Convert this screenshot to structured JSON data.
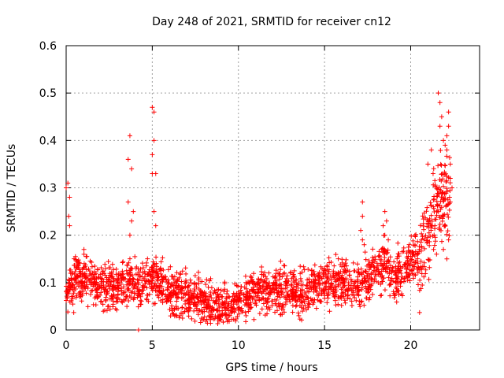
{
  "chart_data": {
    "type": "scatter",
    "title": "Day 248 of 2021, SRMTID for receiver cn12",
    "xlabel": "GPS time / hours",
    "ylabel": "SRMTID / TECUs",
    "xlim": [
      0,
      24
    ],
    "ylim": [
      0,
      0.6
    ],
    "xticks": [
      0,
      5,
      10,
      15,
      20
    ],
    "xtick_labels": [
      "0",
      "5",
      "10",
      "15",
      "20"
    ],
    "yticks": [
      0,
      0.1,
      0.2,
      0.3,
      0.4,
      0.5,
      0.6
    ],
    "ytick_labels": [
      "0",
      "0.1",
      "0.2",
      "0.3",
      "0.4",
      "0.5",
      "0.6"
    ],
    "grid": true,
    "marker": "plus",
    "color": "#ff0000",
    "series": [
      {
        "name": "SRMTID",
        "trend": [
          [
            0.0,
            0.08
          ],
          [
            0.5,
            0.1
          ],
          [
            1.0,
            0.11
          ],
          [
            2.0,
            0.09
          ],
          [
            3.0,
            0.09
          ],
          [
            3.5,
            0.1
          ],
          [
            4.0,
            0.1
          ],
          [
            4.5,
            0.09
          ],
          [
            5.0,
            0.11
          ],
          [
            5.5,
            0.1
          ],
          [
            6.0,
            0.08
          ],
          [
            7.0,
            0.07
          ],
          [
            8.0,
            0.06
          ],
          [
            9.0,
            0.05
          ],
          [
            9.5,
            0.05
          ],
          [
            10.0,
            0.06
          ],
          [
            11.0,
            0.08
          ],
          [
            12.0,
            0.08
          ],
          [
            13.0,
            0.09
          ],
          [
            13.5,
            0.08
          ],
          [
            14.0,
            0.08
          ],
          [
            15.0,
            0.1
          ],
          [
            16.0,
            0.1
          ],
          [
            16.5,
            0.09
          ],
          [
            17.0,
            0.1
          ],
          [
            17.5,
            0.11
          ],
          [
            18.0,
            0.13
          ],
          [
            18.5,
            0.14
          ],
          [
            19.0,
            0.11
          ],
          [
            19.5,
            0.12
          ],
          [
            20.0,
            0.15
          ],
          [
            20.5,
            0.15
          ],
          [
            21.0,
            0.2
          ],
          [
            21.5,
            0.26
          ],
          [
            22.0,
            0.28
          ],
          [
            22.3,
            0.28
          ]
        ],
        "bursts": [
          [
            0.0,
            0.3
          ],
          [
            0.1,
            0.31
          ],
          [
            0.2,
            0.28
          ],
          [
            0.15,
            0.24
          ],
          [
            0.2,
            0.22
          ],
          [
            3.7,
            0.41
          ],
          [
            3.6,
            0.36
          ],
          [
            3.8,
            0.34
          ],
          [
            3.6,
            0.27
          ],
          [
            3.9,
            0.25
          ],
          [
            3.8,
            0.23
          ],
          [
            3.7,
            0.2
          ],
          [
            5.0,
            0.47
          ],
          [
            5.1,
            0.46
          ],
          [
            5.1,
            0.4
          ],
          [
            5.0,
            0.37
          ],
          [
            5.0,
            0.33
          ],
          [
            5.2,
            0.33
          ],
          [
            5.1,
            0.25
          ],
          [
            5.2,
            0.22
          ],
          [
            17.2,
            0.27
          ],
          [
            17.2,
            0.24
          ],
          [
            17.1,
            0.21
          ],
          [
            17.2,
            0.19
          ],
          [
            17.3,
            0.18
          ],
          [
            18.5,
            0.25
          ],
          [
            18.6,
            0.23
          ],
          [
            18.4,
            0.22
          ],
          [
            18.5,
            0.2
          ],
          [
            18.7,
            0.19
          ],
          [
            21.2,
            0.38
          ],
          [
            21.0,
            0.35
          ],
          [
            21.3,
            0.33
          ],
          [
            21.6,
            0.5
          ],
          [
            21.7,
            0.48
          ],
          [
            21.8,
            0.45
          ],
          [
            21.7,
            0.43
          ],
          [
            21.9,
            0.4
          ],
          [
            22.0,
            0.39
          ],
          [
            22.1,
            0.41
          ],
          [
            22.2,
            0.46
          ],
          [
            22.2,
            0.43
          ],
          [
            22.1,
            0.38
          ],
          [
            22.3,
            0.35
          ],
          [
            22.3,
            0.32
          ],
          [
            22.4,
            0.3
          ],
          [
            22.3,
            0.27
          ],
          [
            22.0,
            0.22
          ],
          [
            21.9,
            0.17
          ],
          [
            21.5,
            0.16
          ],
          [
            22.1,
            0.15
          ],
          [
            22.2,
            0.19
          ]
        ],
        "outlier": [
          4.2,
          0.0
        ]
      }
    ]
  }
}
